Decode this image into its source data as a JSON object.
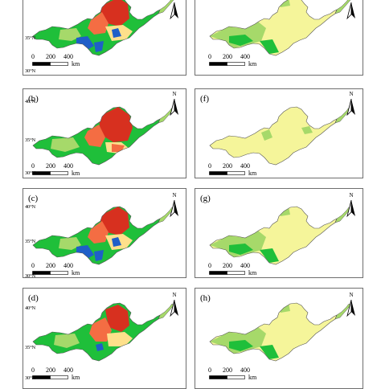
{
  "colors": {
    "red": "#d7301f",
    "orange": "#f46d43",
    "yellow": "#fee08b",
    "pale_yellow": "#f5f59a",
    "light_green": "#a6d96a",
    "green": "#1fbf3a",
    "blue": "#1f5fc8",
    "border": "#6e6e6e"
  },
  "map": {
    "north_label": "N",
    "lat_labels": [
      "40°N",
      "35°N",
      "30°N"
    ],
    "scale_ticks": [
      "0",
      "200",
      "400"
    ],
    "scale_unit": "km"
  },
  "panels": [
    {
      "id": "a",
      "label": "",
      "scheme": "warm-blue"
    },
    {
      "id": "e",
      "label": "",
      "scheme": "pale"
    },
    {
      "id": "b",
      "label": "(b)",
      "scheme": "warm-red"
    },
    {
      "id": "f",
      "label": "(f)",
      "scheme": "pale-plain"
    },
    {
      "id": "c",
      "label": "(c)",
      "scheme": "warm-blue"
    },
    {
      "id": "g",
      "label": "(g)",
      "scheme": "pale"
    },
    {
      "id": "d",
      "label": "(d)",
      "scheme": "warm-mid"
    },
    {
      "id": "h",
      "label": "(h)",
      "scheme": "pale"
    }
  ]
}
